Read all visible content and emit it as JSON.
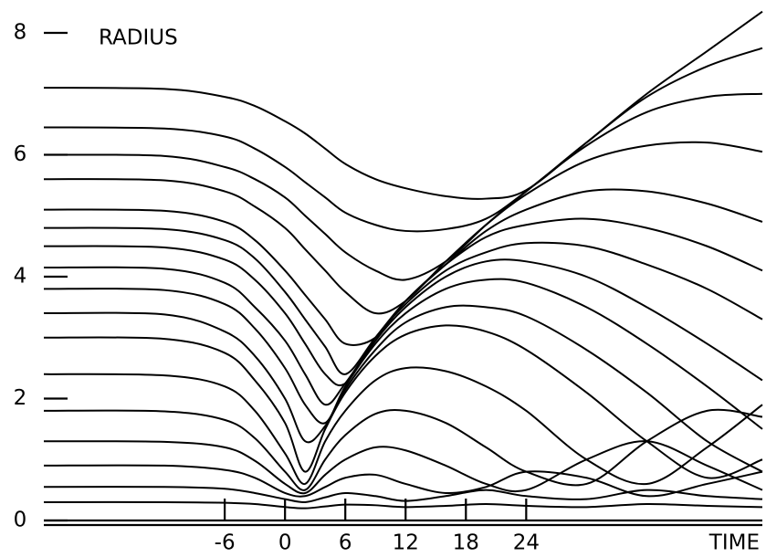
{
  "chart_data": {
    "type": "line",
    "xlabel": "TIME",
    "ylabel": "RADIUS",
    "x": [
      -24,
      -12,
      -6,
      -3,
      0,
      2,
      4,
      6,
      9,
      12,
      16,
      20,
      24,
      30,
      36,
      42,
      47.5
    ],
    "xlim": [
      -24,
      47.5
    ],
    "xticks": [
      -6,
      0,
      6,
      12,
      18,
      24
    ],
    "ylim": [
      0,
      8
    ],
    "yticks": [
      0,
      2,
      4,
      6,
      8
    ],
    "grid": false,
    "series": [
      {
        "color": "#000000",
        "values": [
          7.1,
          7.08,
          6.95,
          6.8,
          6.55,
          6.35,
          6.1,
          5.85,
          5.6,
          5.45,
          5.32,
          5.28,
          5.42,
          6.2,
          7.0,
          7.7,
          8.35
        ]
      },
      {
        "color": "#000000",
        "values": [
          6.45,
          6.43,
          6.3,
          6.1,
          5.8,
          5.55,
          5.3,
          5.05,
          4.85,
          4.75,
          4.78,
          4.95,
          5.4,
          6.2,
          6.95,
          7.45,
          7.75
        ]
      },
      {
        "color": "#000000",
        "values": [
          6.0,
          5.98,
          5.8,
          5.6,
          5.3,
          5.0,
          4.7,
          4.4,
          4.1,
          3.95,
          4.25,
          4.85,
          5.4,
          6.15,
          6.7,
          6.95,
          7.0
        ]
      },
      {
        "color": "#000000",
        "values": [
          5.6,
          5.58,
          5.4,
          5.15,
          4.8,
          4.45,
          4.1,
          3.75,
          3.4,
          3.6,
          4.25,
          4.85,
          5.35,
          5.9,
          6.15,
          6.2,
          6.05
        ]
      },
      {
        "color": "#000000",
        "values": [
          5.1,
          5.08,
          4.9,
          4.6,
          4.1,
          3.7,
          3.3,
          2.9,
          3.0,
          3.6,
          4.2,
          4.75,
          5.1,
          5.4,
          5.4,
          5.2,
          4.9
        ]
      },
      {
        "color": "#000000",
        "values": [
          4.8,
          4.78,
          4.6,
          4.3,
          3.75,
          3.3,
          2.85,
          2.4,
          3.0,
          3.6,
          4.2,
          4.65,
          4.85,
          4.95,
          4.8,
          4.5,
          4.1
        ]
      },
      {
        "color": "#000000",
        "values": [
          4.5,
          4.48,
          4.28,
          3.95,
          3.4,
          2.9,
          2.4,
          2.25,
          3.0,
          3.55,
          4.1,
          4.4,
          4.55,
          4.5,
          4.2,
          3.8,
          3.3
        ]
      },
      {
        "color": "#000000",
        "values": [
          4.15,
          4.13,
          3.9,
          3.5,
          2.95,
          2.4,
          1.9,
          2.25,
          2.95,
          3.5,
          4.0,
          4.25,
          4.25,
          4.0,
          3.5,
          2.9,
          2.3
        ]
      },
      {
        "color": "#000000",
        "values": [
          3.8,
          3.78,
          3.55,
          3.15,
          2.5,
          1.9,
          1.6,
          2.2,
          2.9,
          3.4,
          3.8,
          3.95,
          3.9,
          3.5,
          2.9,
          2.2,
          1.5
        ]
      },
      {
        "color": "#000000",
        "values": [
          3.4,
          3.38,
          3.1,
          2.7,
          2.0,
          1.3,
          1.55,
          2.15,
          2.8,
          3.25,
          3.5,
          3.5,
          3.35,
          2.8,
          2.1,
          1.3,
          0.8
        ]
      },
      {
        "color": "#000000",
        "values": [
          3.0,
          2.98,
          2.75,
          2.3,
          1.6,
          0.8,
          1.5,
          2.1,
          2.7,
          3.05,
          3.2,
          3.1,
          2.8,
          2.1,
          1.3,
          0.7,
          1.0
        ]
      },
      {
        "color": "#000000",
        "values": [
          2.4,
          2.38,
          2.2,
          1.8,
          1.1,
          0.6,
          1.3,
          1.8,
          2.3,
          2.5,
          2.45,
          2.2,
          1.8,
          1.0,
          0.6,
          1.2,
          1.9
        ]
      },
      {
        "color": "#000000",
        "values": [
          1.8,
          1.79,
          1.65,
          1.35,
          0.8,
          0.5,
          1.0,
          1.4,
          1.75,
          1.8,
          1.6,
          1.2,
          0.8,
          0.6,
          1.3,
          1.8,
          1.7
        ]
      },
      {
        "color": "#000000",
        "values": [
          1.3,
          1.29,
          1.2,
          0.98,
          0.6,
          0.45,
          0.75,
          1.0,
          1.2,
          1.15,
          0.9,
          0.6,
          0.5,
          1.0,
          1.3,
          0.9,
          0.5
        ]
      },
      {
        "color": "#000000",
        "values": [
          0.9,
          0.9,
          0.83,
          0.7,
          0.45,
          0.4,
          0.55,
          0.7,
          0.75,
          0.6,
          0.45,
          0.55,
          0.8,
          0.7,
          0.4,
          0.6,
          0.8
        ]
      },
      {
        "color": "#000000",
        "values": [
          0.55,
          0.55,
          0.52,
          0.45,
          0.35,
          0.3,
          0.38,
          0.45,
          0.4,
          0.32,
          0.4,
          0.5,
          0.4,
          0.35,
          0.5,
          0.4,
          0.35
        ]
      },
      {
        "color": "#000000",
        "values": [
          0.3,
          0.3,
          0.29,
          0.27,
          0.22,
          0.2,
          0.23,
          0.26,
          0.25,
          0.22,
          0.24,
          0.27,
          0.24,
          0.22,
          0.27,
          0.24,
          0.22
        ]
      }
    ]
  }
}
